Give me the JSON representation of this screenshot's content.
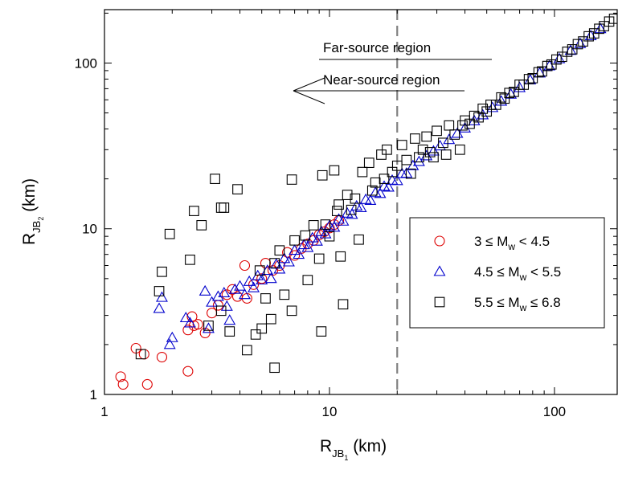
{
  "chart_data": {
    "type": "scatter",
    "title": "",
    "x_scale": "log",
    "y_scale": "log",
    "xlim": [
      1,
      190
    ],
    "ylim": [
      1,
      210
    ],
    "x_ticks": [
      "1",
      "10",
      "100"
    ],
    "y_ticks": [
      "1",
      "10",
      "100"
    ],
    "xlabel": {
      "main": "R",
      "sub": "JB",
      "subsub": "1",
      "unit": " (km)"
    },
    "ylabel": {
      "main": "R",
      "sub": "JB",
      "subsub": "2",
      "unit": " (km)"
    },
    "reference_line": {
      "x": 20,
      "style": "dashed",
      "color": "#808080"
    },
    "annotations": {
      "far": "Far-source region",
      "near": "Near-source region"
    },
    "legend": {
      "placement": "right",
      "entries": [
        {
          "pre": "3 ≤ M",
          "sub": "w",
          "post": " < 4.5",
          "marker": "circle",
          "color": "#dd0000"
        },
        {
          "pre": "4.5 ≤ M",
          "sub": "w",
          "post": " < 5.5",
          "marker": "triangle",
          "color": "#0000cc"
        },
        {
          "pre": "5.5 ≤ M",
          "sub": "w",
          "post": " ≤ 6.8",
          "marker": "square",
          "color": "#000000"
        }
      ]
    },
    "series": [
      {
        "name": "3 ≤ Mw < 4.5",
        "marker": "circle",
        "color": "#dd0000",
        "points": [
          [
            1.18,
            1.28
          ],
          [
            1.21,
            1.15
          ],
          [
            1.38,
            1.9
          ],
          [
            1.5,
            1.75
          ],
          [
            1.55,
            1.15
          ],
          [
            1.8,
            1.68
          ],
          [
            2.35,
            1.38
          ],
          [
            2.35,
            2.45
          ],
          [
            2.45,
            2.95
          ],
          [
            2.5,
            2.6
          ],
          [
            2.6,
            2.65
          ],
          [
            2.8,
            2.35
          ],
          [
            3.0,
            3.1
          ],
          [
            3.2,
            3.45
          ],
          [
            3.5,
            4.0
          ],
          [
            3.7,
            4.3
          ],
          [
            3.9,
            3.9
          ],
          [
            4.2,
            6.0
          ],
          [
            4.3,
            3.8
          ],
          [
            4.6,
            4.6
          ],
          [
            5.0,
            5.0
          ],
          [
            5.2,
            6.2
          ],
          [
            5.6,
            5.6
          ],
          [
            6.0,
            6.0
          ],
          [
            6.5,
            7.2
          ],
          [
            7.0,
            6.9
          ],
          [
            7.5,
            7.6
          ],
          [
            8.0,
            8.1
          ],
          [
            8.5,
            8.5
          ],
          [
            9.0,
            9.2
          ],
          [
            9.5,
            9.6
          ],
          [
            10.0,
            10.1
          ],
          [
            10.5,
            10.6
          ],
          [
            11.0,
            11.2
          ]
        ]
      },
      {
        "name": "4.5 ≤ Mw < 5.5",
        "marker": "triangle",
        "color": "#0000cc",
        "points": [
          [
            1.75,
            3.3
          ],
          [
            1.8,
            3.85
          ],
          [
            1.95,
            2.0
          ],
          [
            2.0,
            2.2
          ],
          [
            2.3,
            2.9
          ],
          [
            2.4,
            2.7
          ],
          [
            2.8,
            4.2
          ],
          [
            2.9,
            2.5
          ],
          [
            3.0,
            3.6
          ],
          [
            3.2,
            3.9
          ],
          [
            3.4,
            4.1
          ],
          [
            3.5,
            3.4
          ],
          [
            3.6,
            2.8
          ],
          [
            3.8,
            4.3
          ],
          [
            4.0,
            4.5
          ],
          [
            4.2,
            4.0
          ],
          [
            4.4,
            4.8
          ],
          [
            4.6,
            4.4
          ],
          [
            4.8,
            5.2
          ],
          [
            5.0,
            4.9
          ],
          [
            5.3,
            5.6
          ],
          [
            5.5,
            5.0
          ],
          [
            5.8,
            6.1
          ],
          [
            6.0,
            5.7
          ],
          [
            6.3,
            6.6
          ],
          [
            6.6,
            6.3
          ],
          [
            7.0,
            7.4
          ],
          [
            7.3,
            7.0
          ],
          [
            7.7,
            8.0
          ],
          [
            8.0,
            7.7
          ],
          [
            8.4,
            8.8
          ],
          [
            8.8,
            8.4
          ],
          [
            9.2,
            9.6
          ],
          [
            9.6,
            9.3
          ],
          [
            10.0,
            10.4
          ],
          [
            10.5,
            10.2
          ],
          [
            11.0,
            11.4
          ],
          [
            11.5,
            11.1
          ],
          [
            12.0,
            12.4
          ],
          [
            12.6,
            12.2
          ],
          [
            13.2,
            13.7
          ],
          [
            13.8,
            13.4
          ],
          [
            14.5,
            15.0
          ],
          [
            15.2,
            14.8
          ],
          [
            16.0,
            16.5
          ],
          [
            16.8,
            16.3
          ],
          [
            17.5,
            18.0
          ],
          [
            18.3,
            17.8
          ],
          [
            19.0,
            19.6
          ],
          [
            20.0,
            19.5
          ],
          [
            21.0,
            21.5
          ],
          [
            22.0,
            21.6
          ],
          [
            23.5,
            24.0
          ],
          [
            25.0,
            25.4
          ],
          [
            27.0,
            27.5
          ],
          [
            29.0,
            29.4
          ],
          [
            31.0,
            31.6
          ],
          [
            34.0,
            34.5
          ],
          [
            37.0,
            37.6
          ],
          [
            40.0,
            40.5
          ],
          [
            44.0,
            44.8
          ],
          [
            48.0,
            48.6
          ],
          [
            53.0,
            53.8
          ],
          [
            58.0,
            58.8
          ],
          [
            64.0,
            64.8
          ],
          [
            70.0,
            71.0
          ],
          [
            78.0,
            79.0
          ],
          [
            86.0,
            87.0
          ],
          [
            95.0,
            96.0
          ],
          [
            105.0,
            106.0
          ],
          [
            118.0,
            119.0
          ],
          [
            130.0,
            131.0
          ],
          [
            145.0,
            146.0
          ],
          [
            160.0,
            161.0
          ]
        ]
      },
      {
        "name": "5.5 ≤ Mw ≤ 6.8",
        "marker": "square",
        "color": "#000000",
        "points": [
          [
            1.45,
            1.75
          ],
          [
            1.75,
            4.2
          ],
          [
            1.8,
            5.5
          ],
          [
            1.95,
            9.3
          ],
          [
            2.4,
            6.5
          ],
          [
            2.5,
            12.8
          ],
          [
            2.7,
            10.5
          ],
          [
            2.9,
            2.6
          ],
          [
            3.1,
            20.0
          ],
          [
            3.3,
            13.4
          ],
          [
            3.4,
            13.4
          ],
          [
            3.3,
            3.2
          ],
          [
            3.6,
            2.4
          ],
          [
            3.9,
            17.3
          ],
          [
            4.3,
            1.85
          ],
          [
            4.7,
            2.3
          ],
          [
            4.9,
            5.6
          ],
          [
            5.0,
            2.5
          ],
          [
            5.2,
            3.8
          ],
          [
            5.5,
            2.85
          ],
          [
            5.7,
            1.45
          ],
          [
            5.7,
            6.2
          ],
          [
            6.0,
            7.4
          ],
          [
            6.3,
            4.0
          ],
          [
            6.8,
            3.2
          ],
          [
            6.8,
            19.8
          ],
          [
            7.0,
            8.5
          ],
          [
            7.8,
            9.1
          ],
          [
            8.0,
            4.9
          ],
          [
            8.5,
            10.5
          ],
          [
            9.0,
            6.6
          ],
          [
            9.2,
            2.4
          ],
          [
            9.3,
            21.0
          ],
          [
            9.6,
            10.6
          ],
          [
            10.0,
            9.0
          ],
          [
            10.5,
            22.5
          ],
          [
            10.8,
            12.8
          ],
          [
            11.0,
            14.0
          ],
          [
            11.2,
            6.8
          ],
          [
            11.5,
            3.5
          ],
          [
            12.0,
            16.0
          ],
          [
            12.5,
            13.0
          ],
          [
            13.0,
            15.2
          ],
          [
            13.5,
            8.6
          ],
          [
            14.0,
            22.0
          ],
          [
            15.0,
            25.0
          ],
          [
            15.5,
            17.0
          ],
          [
            16.0,
            19.0
          ],
          [
            17.0,
            28.0
          ],
          [
            17.5,
            20.0
          ],
          [
            18.0,
            30.0
          ],
          [
            19.0,
            22.0
          ],
          [
            20.0,
            24.0
          ],
          [
            21.0,
            32.0
          ],
          [
            22.0,
            26.0
          ],
          [
            23.0,
            21.5
          ],
          [
            24.0,
            35.0
          ],
          [
            25.0,
            27.0
          ],
          [
            26.0,
            30.0
          ],
          [
            27.0,
            36.0
          ],
          [
            28.0,
            29.0
          ],
          [
            29.0,
            27.0
          ],
          [
            30.0,
            39.0
          ],
          [
            32.0,
            33.0
          ],
          [
            33.0,
            28.0
          ],
          [
            34.0,
            42.0
          ],
          [
            36.0,
            37.0
          ],
          [
            38.0,
            30.0
          ],
          [
            39.0,
            42.0
          ],
          [
            40.0,
            45.0
          ],
          [
            42.0,
            43.0
          ],
          [
            44.0,
            48.0
          ],
          [
            46.0,
            47.0
          ],
          [
            48.0,
            53.0
          ],
          [
            50.0,
            51.0
          ],
          [
            52.0,
            56.0
          ],
          [
            55.0,
            56.0
          ],
          [
            58.0,
            62.0
          ],
          [
            60.0,
            61.0
          ],
          [
            63.0,
            66.0
          ],
          [
            66.0,
            67.0
          ],
          [
            70.0,
            74.0
          ],
          [
            73.0,
            74.0
          ],
          [
            77.0,
            80.0
          ],
          [
            80.0,
            81.0
          ],
          [
            85.0,
            88.0
          ],
          [
            88.0,
            89.0
          ],
          [
            93.0,
            96.0
          ],
          [
            97.0,
            98.0
          ],
          [
            102.0,
            105.0
          ],
          [
            108.0,
            109.0
          ],
          [
            114.0,
            117.0
          ],
          [
            120.0,
            121.0
          ],
          [
            127.0,
            130.0
          ],
          [
            134.0,
            135.0
          ],
          [
            142.0,
            145.0
          ],
          [
            150.0,
            151.0
          ],
          [
            158.0,
            161.0
          ],
          [
            166.0,
            167.0
          ],
          [
            175.0,
            178.0
          ],
          [
            184.0,
            185.0
          ]
        ]
      }
    ]
  }
}
